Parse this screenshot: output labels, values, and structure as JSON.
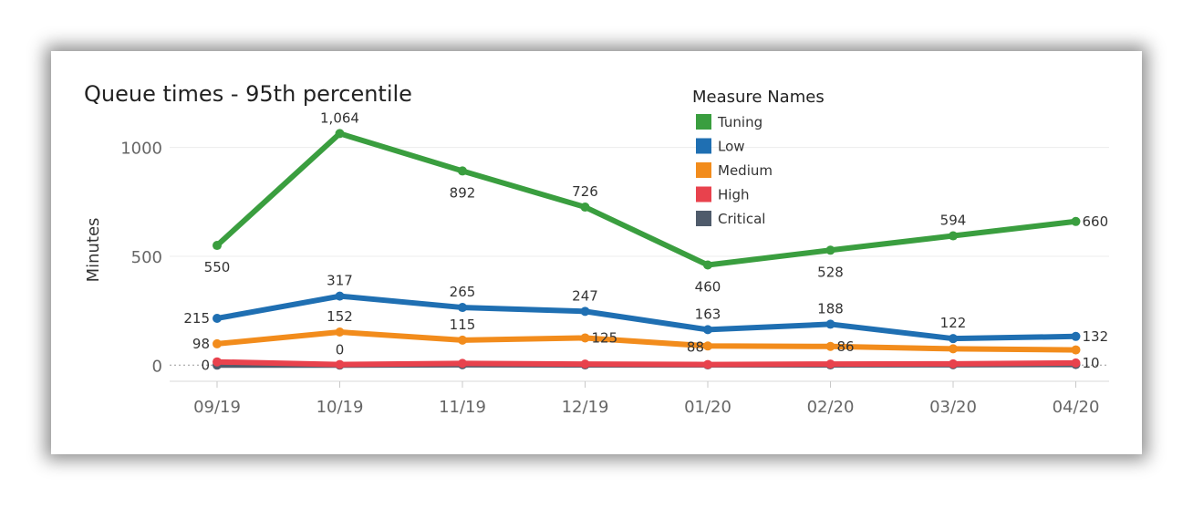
{
  "chart_data": {
    "type": "line",
    "title": "Queue times - 95th percentile",
    "xlabel": "",
    "ylabel": "Minutes",
    "categories": [
      "09/19",
      "10/19",
      "11/19",
      "12/19",
      "01/20",
      "02/20",
      "03/20",
      "04/20"
    ],
    "y_ticks": [
      "0",
      "500",
      "1000"
    ],
    "y_tick_values": [
      0,
      500,
      1000
    ],
    "ylim": [
      -70,
      1120
    ],
    "grid": true,
    "legend": {
      "title": "Measure Names",
      "position": "top-right"
    },
    "series": [
      {
        "name": "Tuning",
        "color": "#3a9e3f",
        "values": [
          550,
          1064,
          892,
          726,
          460,
          528,
          594,
          660
        ],
        "labels": [
          "550",
          "1,064",
          "892",
          "726",
          "460",
          "528",
          "594",
          "660"
        ],
        "label_pos": [
          "below",
          "above",
          "below",
          "above",
          "below",
          "below",
          "above",
          "right"
        ]
      },
      {
        "name": "Low",
        "color": "#1f6fb2",
        "values": [
          215,
          317,
          265,
          247,
          163,
          188,
          122,
          132
        ],
        "labels": [
          "215",
          "317",
          "265",
          "247",
          "163",
          "188",
          "122",
          "132"
        ],
        "label_pos": [
          "left",
          "above",
          "above",
          "above",
          "above",
          "above",
          "above",
          "right"
        ]
      },
      {
        "name": "Medium",
        "color": "#f28c1c",
        "values": [
          98,
          152,
          115,
          125,
          88,
          86,
          75,
          70
        ],
        "labels": [
          "98",
          "152",
          "115",
          "125",
          "88",
          "86",
          "",
          ""
        ],
        "label_pos": [
          "left",
          "above",
          "above",
          "right",
          "below-left",
          "right",
          "none",
          "none"
        ]
      },
      {
        "name": "High",
        "color": "#e8424d",
        "values": [
          15,
          3,
          8,
          5,
          3,
          5,
          6,
          10
        ],
        "labels": [
          "",
          "",
          "",
          "",
          "",
          "",
          "",
          "10"
        ],
        "label_pos": [
          "none",
          "none",
          "none",
          "none",
          "none",
          "none",
          "none",
          "right"
        ]
      },
      {
        "name": "Critical",
        "color": "#4f5b6b",
        "values": [
          0,
          0,
          2,
          1,
          1,
          1,
          2,
          3
        ],
        "labels": [
          "0",
          "0",
          "",
          "",
          "",
          "",
          "",
          ""
        ],
        "label_pos": [
          "left",
          "above",
          "none",
          "none",
          "none",
          "none",
          "none",
          "none"
        ]
      }
    ]
  }
}
